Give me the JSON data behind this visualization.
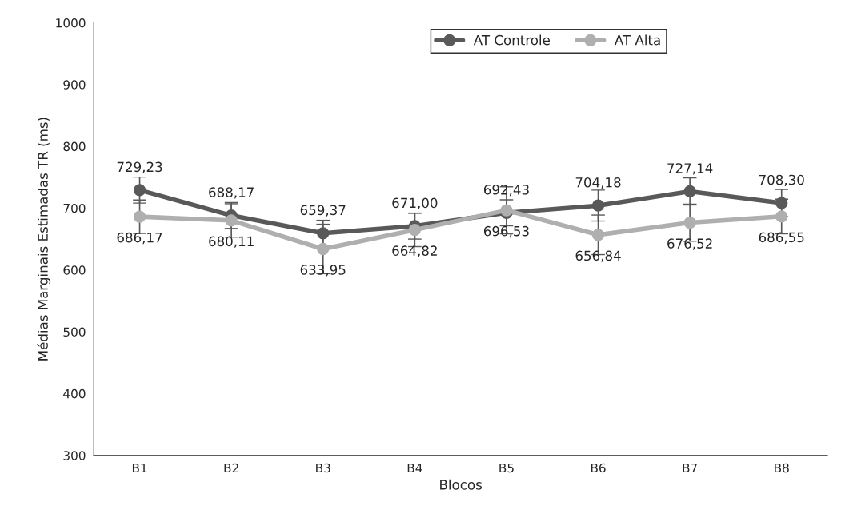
{
  "chart_data": {
    "type": "line",
    "xlabel": "Blocos",
    "ylabel": "Médias Marginais Estimadas TR (ms)",
    "categories": [
      "B1",
      "B2",
      "B3",
      "B4",
      "B5",
      "B6",
      "B7",
      "B8"
    ],
    "series": [
      {
        "name": "AT Controle",
        "color": "#595959",
        "values": [
          729.23,
          688.17,
          659.37,
          671.0,
          692.43,
          704.18,
          727.14,
          708.3
        ],
        "value_labels": [
          "729,23",
          "688,17",
          "659,37",
          "671,00",
          "692,43",
          "704,18",
          "727,14",
          "708,30"
        ],
        "errors": [
          21,
          21,
          21,
          21,
          21,
          25,
          22,
          22
        ]
      },
      {
        "name": "AT Alta",
        "color": "#afafaf",
        "values": [
          686.17,
          680.11,
          633.95,
          664.82,
          696.53,
          656.84,
          676.52,
          686.55
        ],
        "value_labels": [
          "686,17",
          "680,11",
          "633,95",
          "664,82",
          "696,53",
          "656,84",
          "676,52",
          "686,55"
        ],
        "errors": [
          27,
          27,
          40,
          27,
          38,
          32,
          30,
          28
        ]
      }
    ],
    "ylim": [
      300,
      1000
    ],
    "yticks": [
      300,
      400,
      500,
      600,
      700,
      800,
      900,
      1000
    ],
    "grid": false,
    "legend": "top",
    "marker": "circle",
    "line_style": "solid"
  }
}
